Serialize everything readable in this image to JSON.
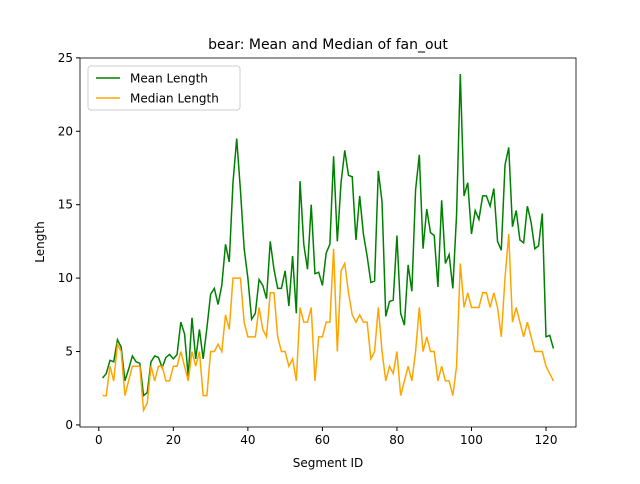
{
  "chart_data": {
    "type": "line",
    "title": "bear: Mean and Median of fan_out",
    "x_label": "Segment ID",
    "y_label": "Length",
    "x": [
      1,
      2,
      3,
      4,
      5,
      6,
      7,
      8,
      9,
      10,
      11,
      12,
      13,
      14,
      15,
      16,
      17,
      18,
      19,
      20,
      21,
      22,
      23,
      24,
      25,
      26,
      27,
      28,
      29,
      30,
      31,
      32,
      33,
      34,
      35,
      36,
      37,
      38,
      39,
      40,
      41,
      42,
      43,
      44,
      45,
      46,
      47,
      48,
      49,
      50,
      51,
      52,
      53,
      54,
      55,
      56,
      57,
      58,
      59,
      60,
      61,
      62,
      63,
      64,
      65,
      66,
      67,
      68,
      69,
      70,
      71,
      72,
      73,
      74,
      75,
      76,
      77,
      78,
      79,
      80,
      81,
      82,
      83,
      84,
      85,
      86,
      87,
      88,
      89,
      90,
      91,
      92,
      93,
      94,
      95,
      96,
      97,
      98,
      99,
      100,
      101,
      102,
      103,
      104,
      105,
      106,
      107,
      108,
      109,
      110,
      111,
      112,
      113,
      114,
      115,
      116,
      117,
      118,
      119,
      120,
      121,
      122
    ],
    "series": [
      {
        "name": "Mean Length",
        "color": "#008000",
        "values": [
          3.2,
          3.5,
          4.4,
          4.3,
          5.8,
          5.3,
          3.0,
          3.8,
          4.7,
          4.3,
          4.2,
          2.0,
          2.2,
          4.3,
          4.7,
          4.6,
          3.9,
          4.6,
          4.8,
          4.5,
          4.8,
          7.0,
          6.2,
          3.3,
          7.3,
          4.5,
          6.5,
          4.5,
          6.6,
          8.9,
          9.3,
          8.2,
          9.5,
          12.3,
          11.1,
          16.5,
          19.5,
          16.0,
          12.0,
          10.0,
          7.2,
          7.6,
          9.9,
          9.5,
          8.6,
          12.5,
          10.6,
          9.3,
          9.3,
          10.5,
          8.1,
          11.5,
          7.6,
          16.6,
          12.3,
          10.6,
          15.0,
          10.3,
          10.4,
          9.5,
          11.7,
          12.3,
          18.3,
          12.5,
          16.5,
          18.7,
          17.0,
          16.9,
          12.6,
          15.6,
          13.0,
          11.5,
          9.7,
          9.8,
          17.3,
          15.2,
          7.4,
          8.4,
          8.5,
          12.9,
          7.6,
          6.8,
          10.9,
          9.1,
          16.0,
          18.4,
          12.0,
          14.7,
          13.1,
          12.9,
          9.4,
          15.3,
          11.0,
          11.6,
          9.3,
          14.3,
          23.9,
          15.6,
          16.5,
          13.0,
          14.6,
          14.0,
          15.6,
          15.6,
          14.9,
          16.1,
          12.5,
          11.9,
          17.7,
          18.9,
          13.5,
          14.6,
          12.6,
          12.4,
          14.9,
          13.8,
          12.0,
          12.2,
          14.4,
          6.0,
          6.1,
          5.2
        ]
      },
      {
        "name": "Median Length",
        "color": "#ffa500",
        "values": [
          2,
          2,
          4,
          3,
          5.5,
          5,
          2,
          3,
          4,
          4,
          4,
          1,
          1.5,
          4,
          3,
          4,
          4,
          3,
          3,
          4,
          4,
          5,
          4,
          3,
          5,
          4,
          5,
          2,
          2,
          5,
          5,
          5.5,
          5,
          7.5,
          6.5,
          10,
          10,
          10,
          7,
          6,
          6,
          6,
          8,
          6.5,
          6,
          9,
          9,
          6,
          5,
          5,
          4,
          4.5,
          3,
          8,
          7,
          7,
          8,
          3,
          6,
          6,
          7,
          7,
          12,
          5,
          10.5,
          11,
          9,
          7.5,
          7,
          7.5,
          7,
          7,
          4.5,
          5,
          8,
          5,
          3,
          4,
          3.5,
          5,
          2,
          3,
          4,
          3,
          5,
          8,
          5,
          6,
          5,
          5,
          3,
          4,
          3,
          3,
          2,
          4,
          11,
          8,
          9,
          8,
          8,
          8,
          9,
          9,
          8,
          9,
          8,
          6,
          10,
          13,
          7,
          8,
          7,
          6,
          7,
          6,
          5,
          5,
          5,
          4,
          3.5,
          3
        ]
      }
    ],
    "xlim": [
      -5.05,
      128.05
    ],
    "ylim": [
      -0.14,
      24.99
    ],
    "xticks": [
      0,
      20,
      40,
      60,
      80,
      100,
      120
    ],
    "yticks": [
      0,
      5,
      10,
      15,
      20,
      25
    ],
    "legend": "upper left"
  }
}
